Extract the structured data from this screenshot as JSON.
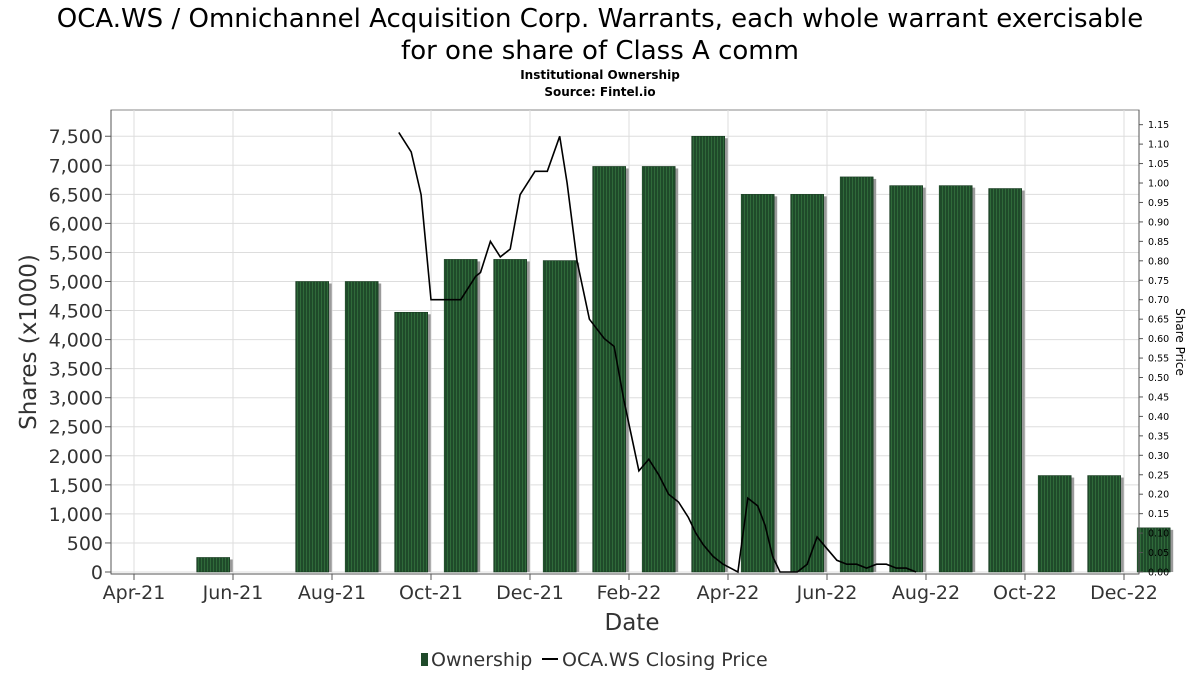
{
  "title_line1": "OCA.WS / Omnichannel Acquisition Corp. Warrants, each whole warrant exercisable",
  "title_line2": "for one share of Class A comm",
  "subtitle": "Institutional Ownership",
  "source": "Source: Fintel.io",
  "colors": {
    "bar": "#1f4a2a",
    "bar_stripe": "#2f6a3a",
    "bar_shadow": "#9a9a9a",
    "line": "#000000",
    "grid": "#dddddd"
  },
  "chart_data": {
    "type": "bar",
    "xlabel": "Date",
    "ylabel": "Shares (x1000)",
    "y2label": "Share Price",
    "ylim": [
      0,
      7900
    ],
    "y2lim": [
      0,
      1.18
    ],
    "yticks": [
      "0",
      "500",
      "1,000",
      "1,500",
      "2,000",
      "2,500",
      "3,000",
      "3,500",
      "4,000",
      "4,500",
      "5,000",
      "5,500",
      "6,000",
      "6,500",
      "7,000",
      "7,500"
    ],
    "y2ticks": [
      "0.00",
      "0.05",
      "0.10",
      "0.15",
      "0.20",
      "0.25",
      "0.30",
      "0.35",
      "0.40",
      "0.45",
      "0.50",
      "0.55",
      "0.60",
      "0.65",
      "0.70",
      "0.75",
      "0.80",
      "0.85",
      "0.90",
      "0.95",
      "1.00",
      "1.05",
      "1.10",
      "1.15"
    ],
    "xticks": [
      "Apr-21",
      "Jun-21",
      "Aug-21",
      "Oct-21",
      "Dec-21",
      "Feb-22",
      "Apr-22",
      "Jun-22",
      "Aug-22",
      "Oct-22",
      "Dec-22"
    ],
    "grid": true,
    "legend_position": "bottom",
    "series": [
      {
        "name": "Ownership",
        "kind": "bar",
        "x": [
          1.6,
          3.6,
          4.6,
          5.6,
          6.6,
          7.6,
          8.6,
          9.6,
          10.6,
          11.6,
          12.6,
          13.6,
          14.6,
          15.6,
          16.6,
          17.6,
          18.6,
          19.6,
          20.6
        ],
        "values": [
          250,
          5000,
          5000,
          4470,
          5380,
          5380,
          5360,
          6980,
          6980,
          7500,
          6500,
          6500,
          6800,
          6650,
          6650,
          6600,
          1660,
          1660,
          760
        ]
      },
      {
        "name": "OCA.WS Closing Price",
        "kind": "line",
        "x": [
          5.35,
          5.6,
          5.8,
          6.0,
          6.3,
          6.6,
          6.9,
          7.0,
          7.2,
          7.4,
          7.6,
          7.8,
          8.1,
          8.35,
          8.6,
          8.75,
          8.95,
          9.2,
          9.5,
          9.7,
          9.9,
          10.2,
          10.4,
          10.6,
          10.8,
          11.0,
          11.2,
          11.35,
          11.5,
          11.7,
          11.9,
          12.05,
          12.2,
          12.4,
          12.6,
          12.75,
          12.9,
          13.05,
          13.2,
          13.4,
          13.6,
          13.8,
          14.0,
          14.2,
          14.4,
          14.6,
          14.8,
          15.0,
          15.2,
          15.4,
          15.6,
          15.8
        ],
        "values": [
          1.13,
          1.08,
          0.97,
          0.7,
          0.7,
          0.7,
          0.76,
          0.77,
          0.85,
          0.81,
          0.83,
          0.97,
          1.03,
          1.03,
          1.12,
          1.0,
          0.8,
          0.65,
          0.6,
          0.58,
          0.44,
          0.26,
          0.29,
          0.25,
          0.2,
          0.18,
          0.14,
          0.1,
          0.07,
          0.04,
          0.02,
          0.01,
          0.0,
          0.19,
          0.17,
          0.12,
          0.04,
          0.0,
          0.0,
          0.0,
          0.02,
          0.09,
          0.06,
          0.03,
          0.02,
          0.02,
          0.01,
          0.02,
          0.02,
          0.01,
          0.01,
          0.0
        ]
      }
    ]
  }
}
